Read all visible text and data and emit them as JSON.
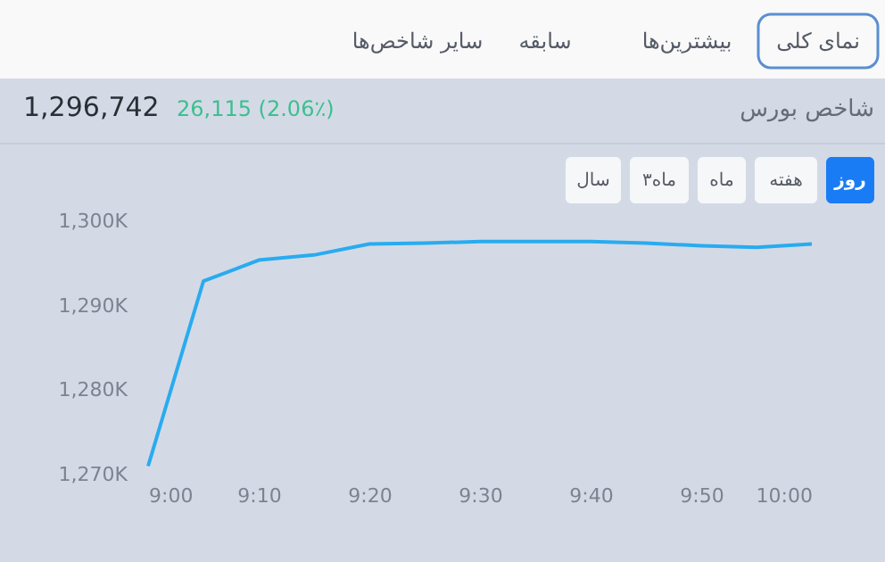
{
  "chart_data": {
    "type": "line",
    "title": "شاخص بورس",
    "annotations": [
      "1,296,742",
      "26,115 (2.06٪)",
      "نمای کلی",
      "بیشترین‌ها",
      "سابقه",
      "سایر شاخص‌ها",
      "روز",
      "هفته",
      "ماه",
      "۳ماه",
      "سال"
    ],
    "x": [
      9.0,
      9.0833,
      9.1667,
      9.25,
      9.3333,
      9.4167,
      9.5,
      9.5833,
      9.6667,
      9.75,
      9.8333,
      9.9167,
      10.0
    ],
    "series": [
      {
        "color": "#29abf0",
        "values": [
          1271.0,
          1292.9,
          1295.4,
          1296.0,
          1297.3,
          1297.4,
          1297.6,
          1297.6,
          1297.6,
          1297.4,
          1297.1,
          1296.9,
          1297.3
        ]
      }
    ],
    "xlim": [
      9.0,
      10.0
    ],
    "ylim": [
      1270,
      1300
    ],
    "xticks": [
      {
        "value": 9.0,
        "label": "9:00"
      },
      {
        "value": 9.1667,
        "label": "9:10"
      },
      {
        "value": 9.3333,
        "label": "9:20"
      },
      {
        "value": 9.5,
        "label": "9:30"
      },
      {
        "value": 9.6667,
        "label": "9:40"
      },
      {
        "value": 9.8333,
        "label": "9:50"
      },
      {
        "value": 10.0,
        "label": "10:00"
      }
    ],
    "yticks": [
      {
        "value": 1270,
        "label": "1,270K"
      },
      {
        "value": 1280,
        "label": "1,280K"
      },
      {
        "value": 1290,
        "label": "1,290K"
      },
      {
        "value": 1300,
        "label": "1,300K"
      }
    ],
    "grid": false,
    "legend": false,
    "marker": "none",
    "line_style": "solid"
  }
}
